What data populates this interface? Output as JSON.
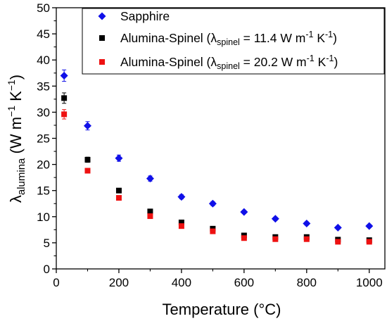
{
  "chart_data": {
    "type": "scatter",
    "xlabel": "Temperature (°C)",
    "ylabel": {
      "base": "λ",
      "subscript": "alumina",
      "unit_prefix": " (W m",
      "exp1": "−1",
      "unit_mid": " K",
      "exp2": "−1",
      "unit_suffix": ")"
    },
    "xlim": [
      0,
      1050
    ],
    "ylim": [
      0,
      50
    ],
    "xticks": [
      0,
      200,
      400,
      600,
      800,
      1000
    ],
    "yticks": [
      0,
      5,
      10,
      15,
      20,
      25,
      30,
      35,
      40,
      45,
      50
    ],
    "grid": false,
    "legend_position": "top-right",
    "series": [
      {
        "name": "Sapphire",
        "legend_parts": {
          "text": "Sapphire"
        },
        "marker": "diamond",
        "color": "#1010e8",
        "x": [
          25,
          100,
          200,
          300,
          400,
          500,
          600,
          700,
          800,
          900,
          1000
        ],
        "y": [
          37.0,
          27.4,
          21.2,
          17.3,
          13.8,
          12.5,
          10.9,
          9.6,
          8.7,
          7.9,
          8.2
        ],
        "err": [
          1.1,
          0.8,
          0.6,
          0.5,
          0.4,
          0.4,
          0.3,
          0.3,
          0.3,
          0.3,
          0.3
        ]
      },
      {
        "name": "Alumina-Spinel (λspinel = 11.4 W m-1 K-1)",
        "legend_parts": {
          "pre": "Alumina-Spinel (λ",
          "sub": "spinel",
          "mid": " = 11.4 W m",
          "sup1": "-1",
          "k": " K",
          "sup2": "-1",
          "post": ")"
        },
        "marker": "square",
        "color": "#000000",
        "x": [
          25,
          100,
          200,
          300,
          400,
          500,
          600,
          700,
          800,
          900,
          1000
        ],
        "y": [
          32.7,
          20.9,
          15.0,
          11.0,
          8.9,
          7.7,
          6.4,
          6.1,
          6.1,
          5.6,
          5.5
        ],
        "err": [
          1.0,
          0.5,
          0.4,
          0.3,
          0.3,
          0.3,
          0.2,
          0.2,
          0.2,
          0.2,
          0.2
        ]
      },
      {
        "name": "Alumina-Spinel (λspinel = 20.2 W m-1 K-1)",
        "legend_parts": {
          "pre": "Alumina-Spinel (λ",
          "sub": "spinel",
          "mid": " = 20.2 W m",
          "sup1": "-1",
          "k": " K",
          "sup2": "-1",
          "post": ")"
        },
        "marker": "square",
        "color": "#ee1111",
        "x": [
          25,
          100,
          200,
          300,
          400,
          500,
          600,
          700,
          800,
          900,
          1000
        ],
        "y": [
          29.6,
          18.8,
          13.6,
          10.1,
          8.2,
          7.2,
          5.9,
          5.7,
          5.7,
          5.2,
          5.2
        ],
        "err": [
          0.9,
          0.4,
          0.4,
          0.3,
          0.3,
          0.3,
          0.3,
          0.3,
          0.3,
          0.3,
          0.3
        ]
      }
    ]
  }
}
